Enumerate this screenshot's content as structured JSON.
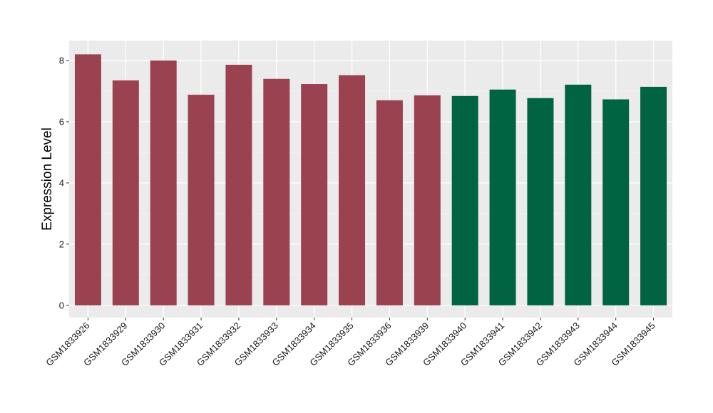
{
  "chart_data": {
    "type": "bar",
    "ylabel": "Expression Level",
    "xlabel": "",
    "ylim": [
      -0.4,
      8.65
    ],
    "yticks": [
      0,
      2,
      4,
      6,
      8
    ],
    "grid": true,
    "background": "#ebebeb",
    "group_colors": {
      "group1": "#9b4250",
      "group2": "#006443"
    },
    "categories": [
      "GSM1833926",
      "GSM1833929",
      "GSM1833930",
      "GSM1833931",
      "GSM1833932",
      "GSM1833933",
      "GSM1833934",
      "GSM1833935",
      "GSM1833936",
      "GSM1833939",
      "GSM1833940",
      "GSM1833941",
      "GSM1833942",
      "GSM1833943",
      "GSM1833944",
      "GSM1833945"
    ],
    "values": [
      8.2,
      7.35,
      8.0,
      6.88,
      7.86,
      7.4,
      7.23,
      7.52,
      6.7,
      6.86,
      6.84,
      7.05,
      6.77,
      7.21,
      6.73,
      7.14
    ],
    "groups": [
      "group1",
      "group1",
      "group1",
      "group1",
      "group1",
      "group1",
      "group1",
      "group1",
      "group1",
      "group1",
      "group2",
      "group2",
      "group2",
      "group2",
      "group2",
      "group2"
    ]
  }
}
